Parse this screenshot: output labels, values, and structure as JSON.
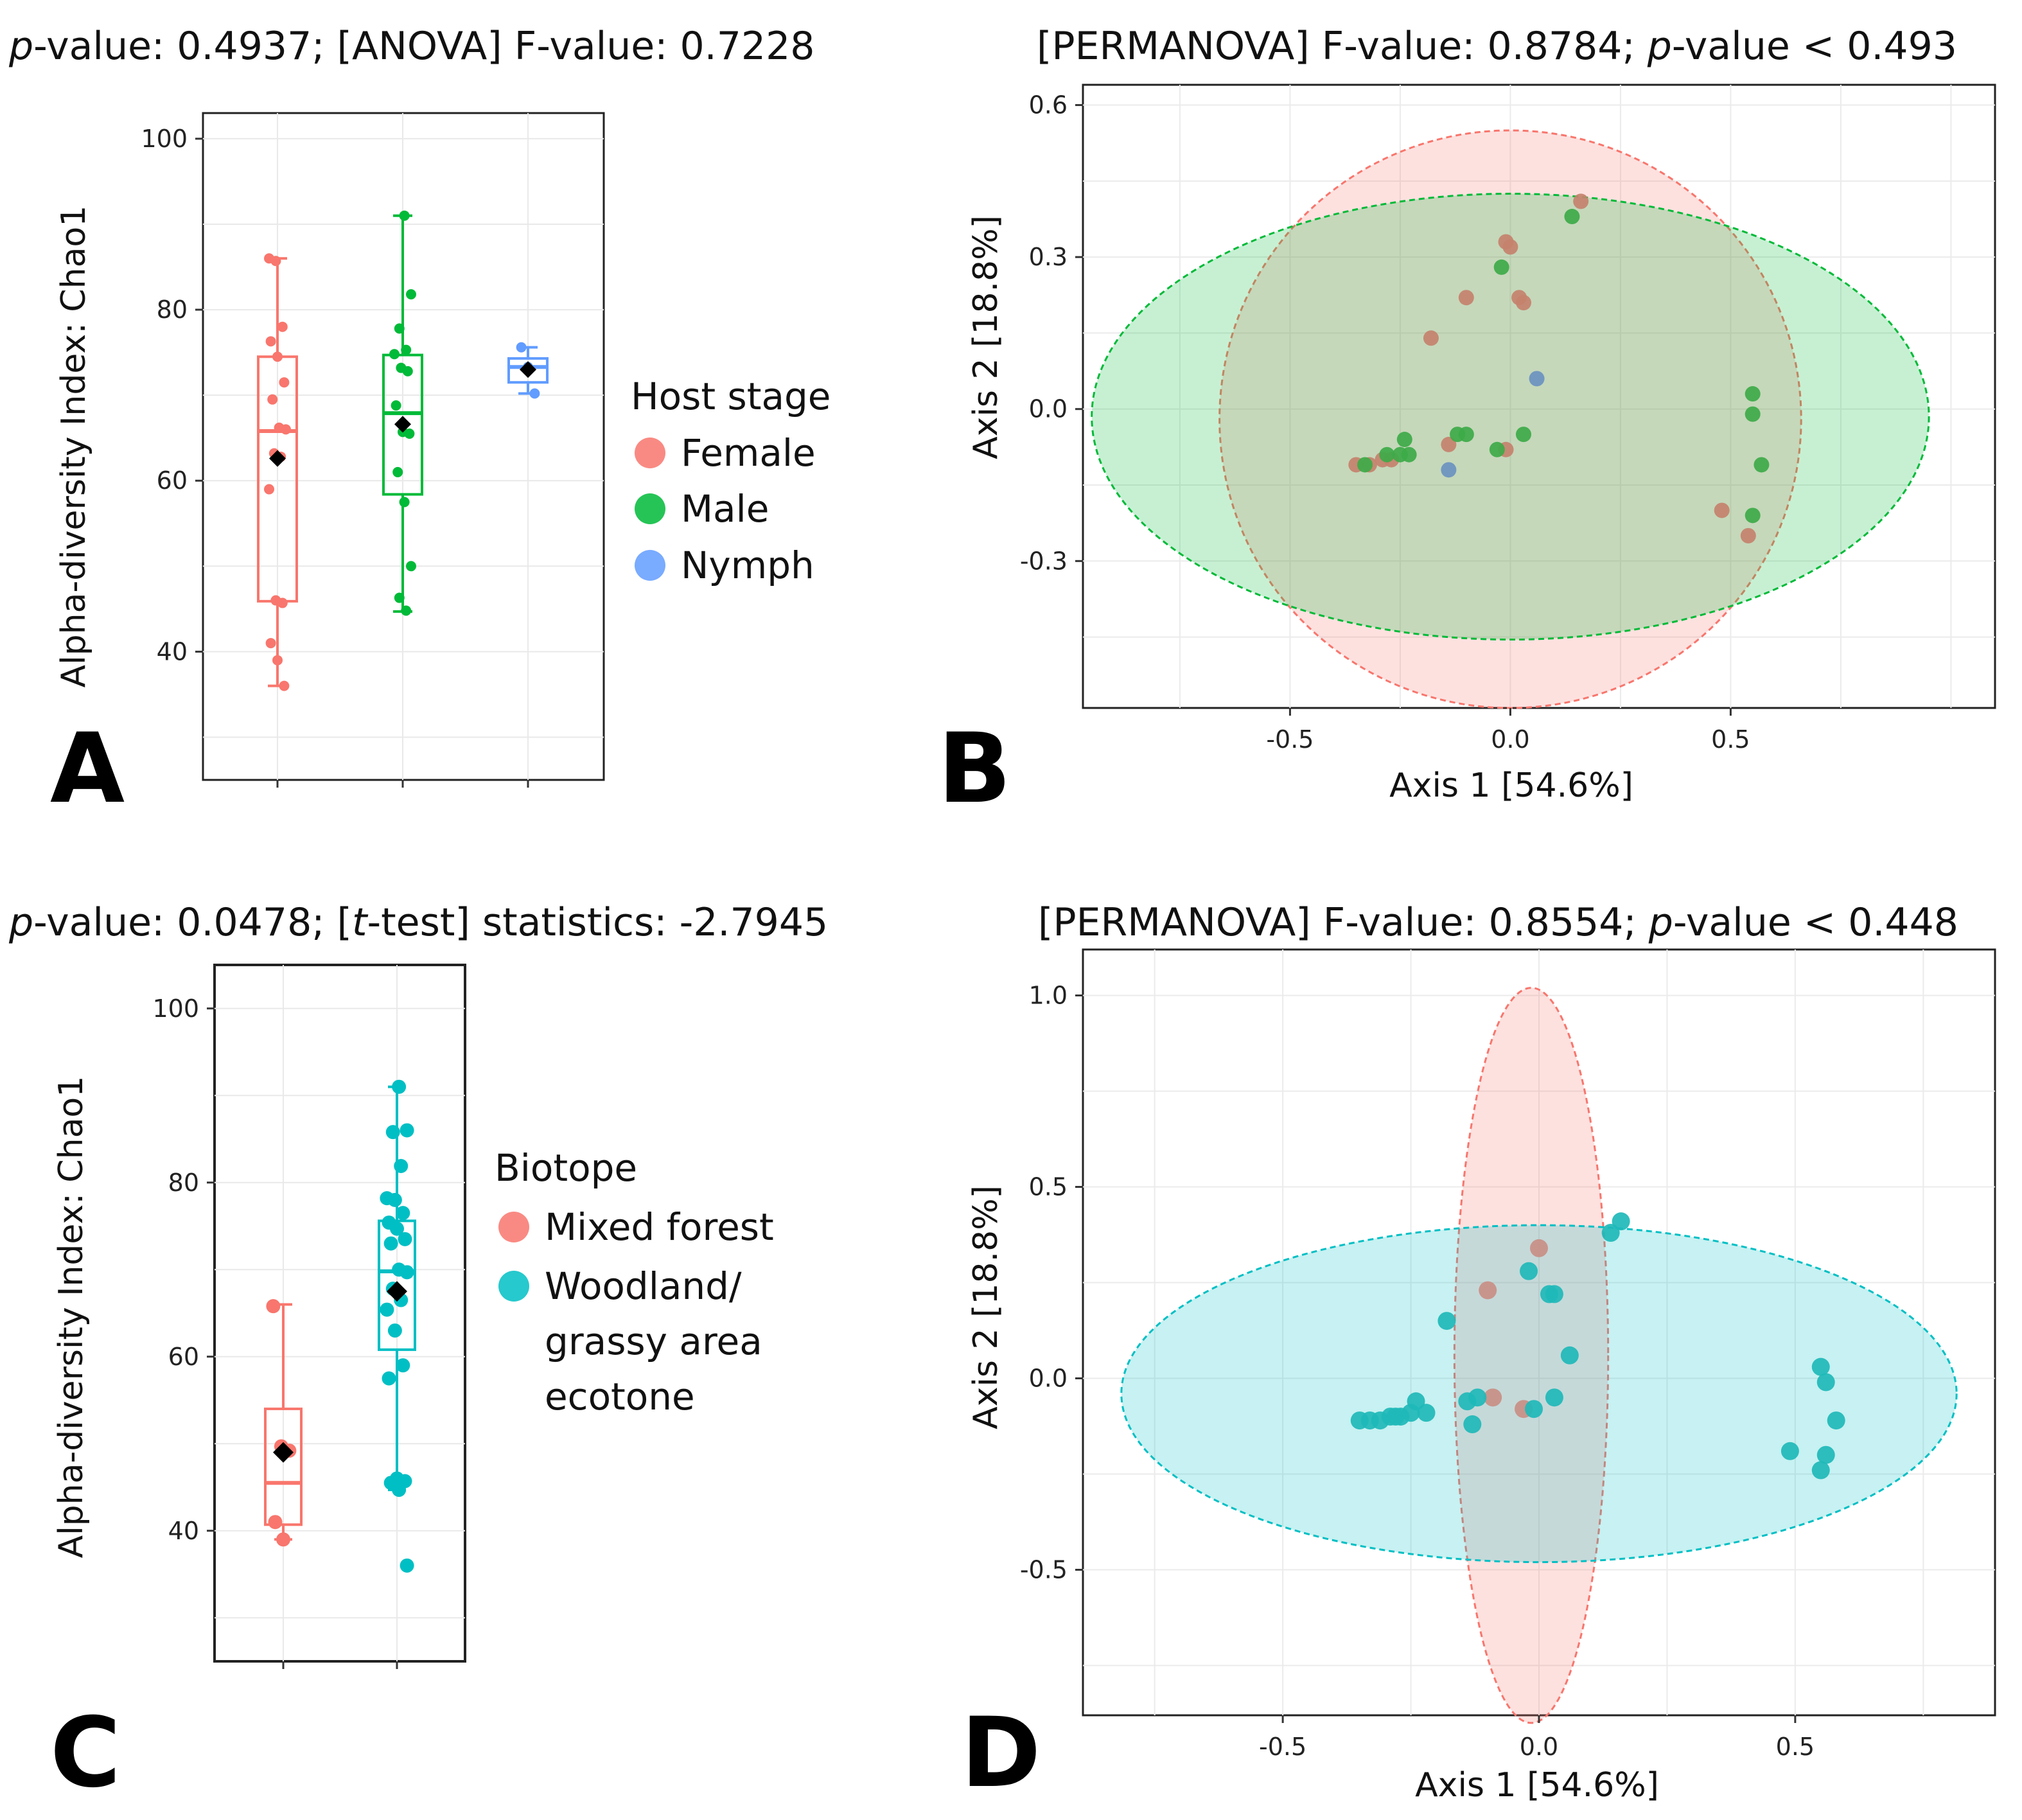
{
  "chart_data": [
    {
      "panel": "A",
      "type": "box",
      "title_parts": [
        "p",
        "-value: 0.4937; [ANOVA] F-value: 0.7228"
      ],
      "ylabel": "Alpha-diversity Index: Chao1",
      "ylim": [
        25,
        103
      ],
      "yticks": [
        "40",
        "60",
        "80",
        "100"
      ],
      "ytick_values": [
        40,
        60,
        80,
        100
      ],
      "legend_title": "Host  stage",
      "groups": [
        {
          "name": "Female",
          "color": "#f8766d",
          "q1": 45.9,
          "median": 65.8,
          "q3": 74.5,
          "whisker_low": 36,
          "whisker_high": 86,
          "mean": 62.6,
          "points": [
            86,
            85.7,
            78,
            76.3,
            74.5,
            71.5,
            69.5,
            66.2,
            66,
            63.2,
            62.8,
            59,
            46,
            45.7,
            41,
            39,
            36
          ]
        },
        {
          "name": "Male",
          "color": "#00ba38",
          "q1": 58.4,
          "median": 67.9,
          "q3": 74.7,
          "whisker_low": 44.7,
          "whisker_high": 91,
          "mean": 66.6,
          "points": [
            91,
            81.8,
            77.8,
            75.3,
            74.8,
            73.2,
            72.8,
            68.8,
            65.7,
            65.5,
            61,
            57.5,
            50,
            46.3,
            44.8
          ]
        },
        {
          "name": "Nymph",
          "color": "#619cff",
          "q1": 71.5,
          "median": 73.3,
          "q3": 74.3,
          "whisker_low": 70.2,
          "whisker_high": 75.6,
          "mean": 73.0,
          "points": [
            75.6,
            73.3,
            70.2
          ]
        }
      ]
    },
    {
      "panel": "B",
      "type": "scatter",
      "title_parts": [
        "[PERMANOVA] F-value: 0.8784; ",
        "p",
        "-value < 0.493"
      ],
      "xlabel": "Axis 1 [54.6%]",
      "ylabel": "Axis 2 [18.8%]",
      "xlim": [
        -0.97,
        1.1
      ],
      "ylim": [
        -0.59,
        0.64
      ],
      "xticks": [
        "-0.5",
        "0.0",
        "0.5"
      ],
      "xtick_values": [
        -0.5,
        0,
        0.5
      ],
      "yticks": [
        "-0.3",
        "0.0",
        "0.3",
        "0.6"
      ],
      "ytick_values": [
        -0.3,
        0,
        0.3,
        0.6
      ],
      "ellipses": [
        {
          "group": "Female",
          "cx": 0.0,
          "cy": -0.02,
          "rx": 0.66,
          "ry": 0.57,
          "color": "#f8766d"
        },
        {
          "group": "Male",
          "cx": 0.0,
          "cy": -0.015,
          "rx": 0.95,
          "ry": 0.44,
          "color": "#00ba38"
        }
      ],
      "series": [
        {
          "name": "Female",
          "color": "#c4826c",
          "x": [
            0.16,
            -0.01,
            0.0,
            -0.1,
            0.02,
            0.03,
            -0.18,
            -0.14,
            -0.01,
            -0.35,
            -0.32,
            -0.29,
            -0.27,
            0.48,
            0.54
          ],
          "y": [
            0.41,
            0.33,
            0.32,
            0.22,
            0.22,
            0.21,
            0.14,
            -0.07,
            -0.08,
            -0.11,
            -0.11,
            -0.1,
            -0.1,
            -0.2,
            -0.25
          ]
        },
        {
          "name": "Male",
          "color": "#3daa48",
          "x": [
            0.14,
            -0.02,
            0.55,
            0.55,
            0.57,
            0.55,
            -0.24,
            -0.1,
            -0.12,
            0.03,
            -0.03,
            -0.25,
            -0.28,
            -0.23,
            -0.33
          ],
          "y": [
            0.38,
            0.28,
            0.03,
            -0.01,
            -0.11,
            -0.21,
            -0.06,
            -0.05,
            -0.05,
            -0.05,
            -0.08,
            -0.09,
            -0.09,
            -0.09,
            -0.11
          ]
        },
        {
          "name": "Nymph",
          "color": "#6a93c0",
          "x": [
            0.06,
            -0.14
          ],
          "y": [
            0.06,
            -0.12
          ]
        }
      ]
    },
    {
      "panel": "C",
      "type": "box",
      "title_parts": [
        "p",
        "-value:  0.0478; [",
        "t",
        "-test] statistics: -2.7945"
      ],
      "ylabel": "Alpha-diversity Index: Chao1",
      "ylim": [
        25,
        105
      ],
      "yticks": [
        "40",
        "60",
        "80",
        "100"
      ],
      "ytick_values": [
        40,
        60,
        80,
        100
      ],
      "legend_title": "Biotope",
      "legend_labels": [
        [
          "Mixed forest"
        ],
        [
          "Woodland/",
          "grassy area",
          "ecotone"
        ]
      ],
      "groups": [
        {
          "name": "Mixed forest",
          "color": "#f8766d",
          "q1": 40.7,
          "median": 45.5,
          "q3": 54,
          "whisker_low": 39,
          "whisker_high": 66,
          "mean": 49,
          "points": [
            65.8,
            49.7,
            49.2,
            41,
            39
          ]
        },
        {
          "name": "Woodland/grassy area ecotone",
          "color": "#00bfc4",
          "q1": 60.8,
          "median": 69.8,
          "q3": 75.6,
          "whisker_low": 44.7,
          "whisker_high": 91,
          "mean": 67.5,
          "points": [
            91,
            86,
            85.8,
            81.9,
            78.2,
            78,
            76.5,
            75.4,
            74.7,
            73.5,
            73,
            70,
            69.7,
            67.8,
            66.5,
            65.4,
            63,
            59,
            57.5,
            46,
            45.7,
            45.5,
            44.7,
            36
          ]
        }
      ]
    },
    {
      "panel": "D",
      "type": "scatter",
      "title_parts": [
        "[PERMANOVA] F-value: 0.8554; ",
        "p",
        "-value < 0.448"
      ],
      "xlabel": "Axis 1 [54.6%]",
      "ylabel": "Axis 2 [18.8%]",
      "xlim": [
        -0.89,
        0.89
      ],
      "ylim": [
        -0.88,
        1.12
      ],
      "xticks": [
        "-0.5",
        "0.0",
        "0.5"
      ],
      "xtick_values": [
        -0.5,
        0,
        0.5
      ],
      "yticks": [
        "-0.5",
        "0.0",
        "0.5",
        "1.0"
      ],
      "ytick_values": [
        -0.5,
        0,
        0.5,
        1
      ],
      "ellipses": [
        {
          "group": "Mixed forest",
          "cx": -0.015,
          "cy": 0.06,
          "rx": 0.15,
          "ry": 0.96,
          "color": "#f8766d"
        },
        {
          "group": "Woodland/grassy area ecotone",
          "cx": 0.0,
          "cy": -0.04,
          "rx": 0.815,
          "ry": 0.44,
          "color": "#00bfc4"
        }
      ],
      "series": [
        {
          "name": "Mixed forest",
          "color": "#c88f86",
          "x": [
            0.0,
            -0.1,
            -0.09,
            -0.03
          ],
          "y": [
            0.34,
            0.23,
            -0.05,
            -0.08
          ]
        },
        {
          "name": "Woodland/grassy area ecotone",
          "color": "#1fb9b9",
          "x": [
            0.16,
            0.14,
            -0.02,
            0.02,
            0.03,
            -0.18,
            0.06,
            0.55,
            0.56,
            0.58,
            0.49,
            0.56,
            0.55,
            -0.35,
            -0.33,
            -0.31,
            -0.29,
            -0.28,
            -0.27,
            -0.25,
            -0.24,
            -0.22,
            -0.14,
            -0.12,
            -0.13,
            0.03,
            -0.01
          ],
          "y": [
            0.41,
            0.38,
            0.28,
            0.22,
            0.22,
            0.15,
            0.06,
            0.03,
            -0.01,
            -0.11,
            -0.19,
            -0.2,
            -0.24,
            -0.11,
            -0.11,
            -0.11,
            -0.1,
            -0.1,
            -0.1,
            -0.09,
            -0.06,
            -0.09,
            -0.06,
            -0.05,
            -0.12,
            -0.05,
            -0.08
          ]
        }
      ]
    }
  ],
  "panel_labels": [
    "A",
    "B",
    "C",
    "D"
  ]
}
